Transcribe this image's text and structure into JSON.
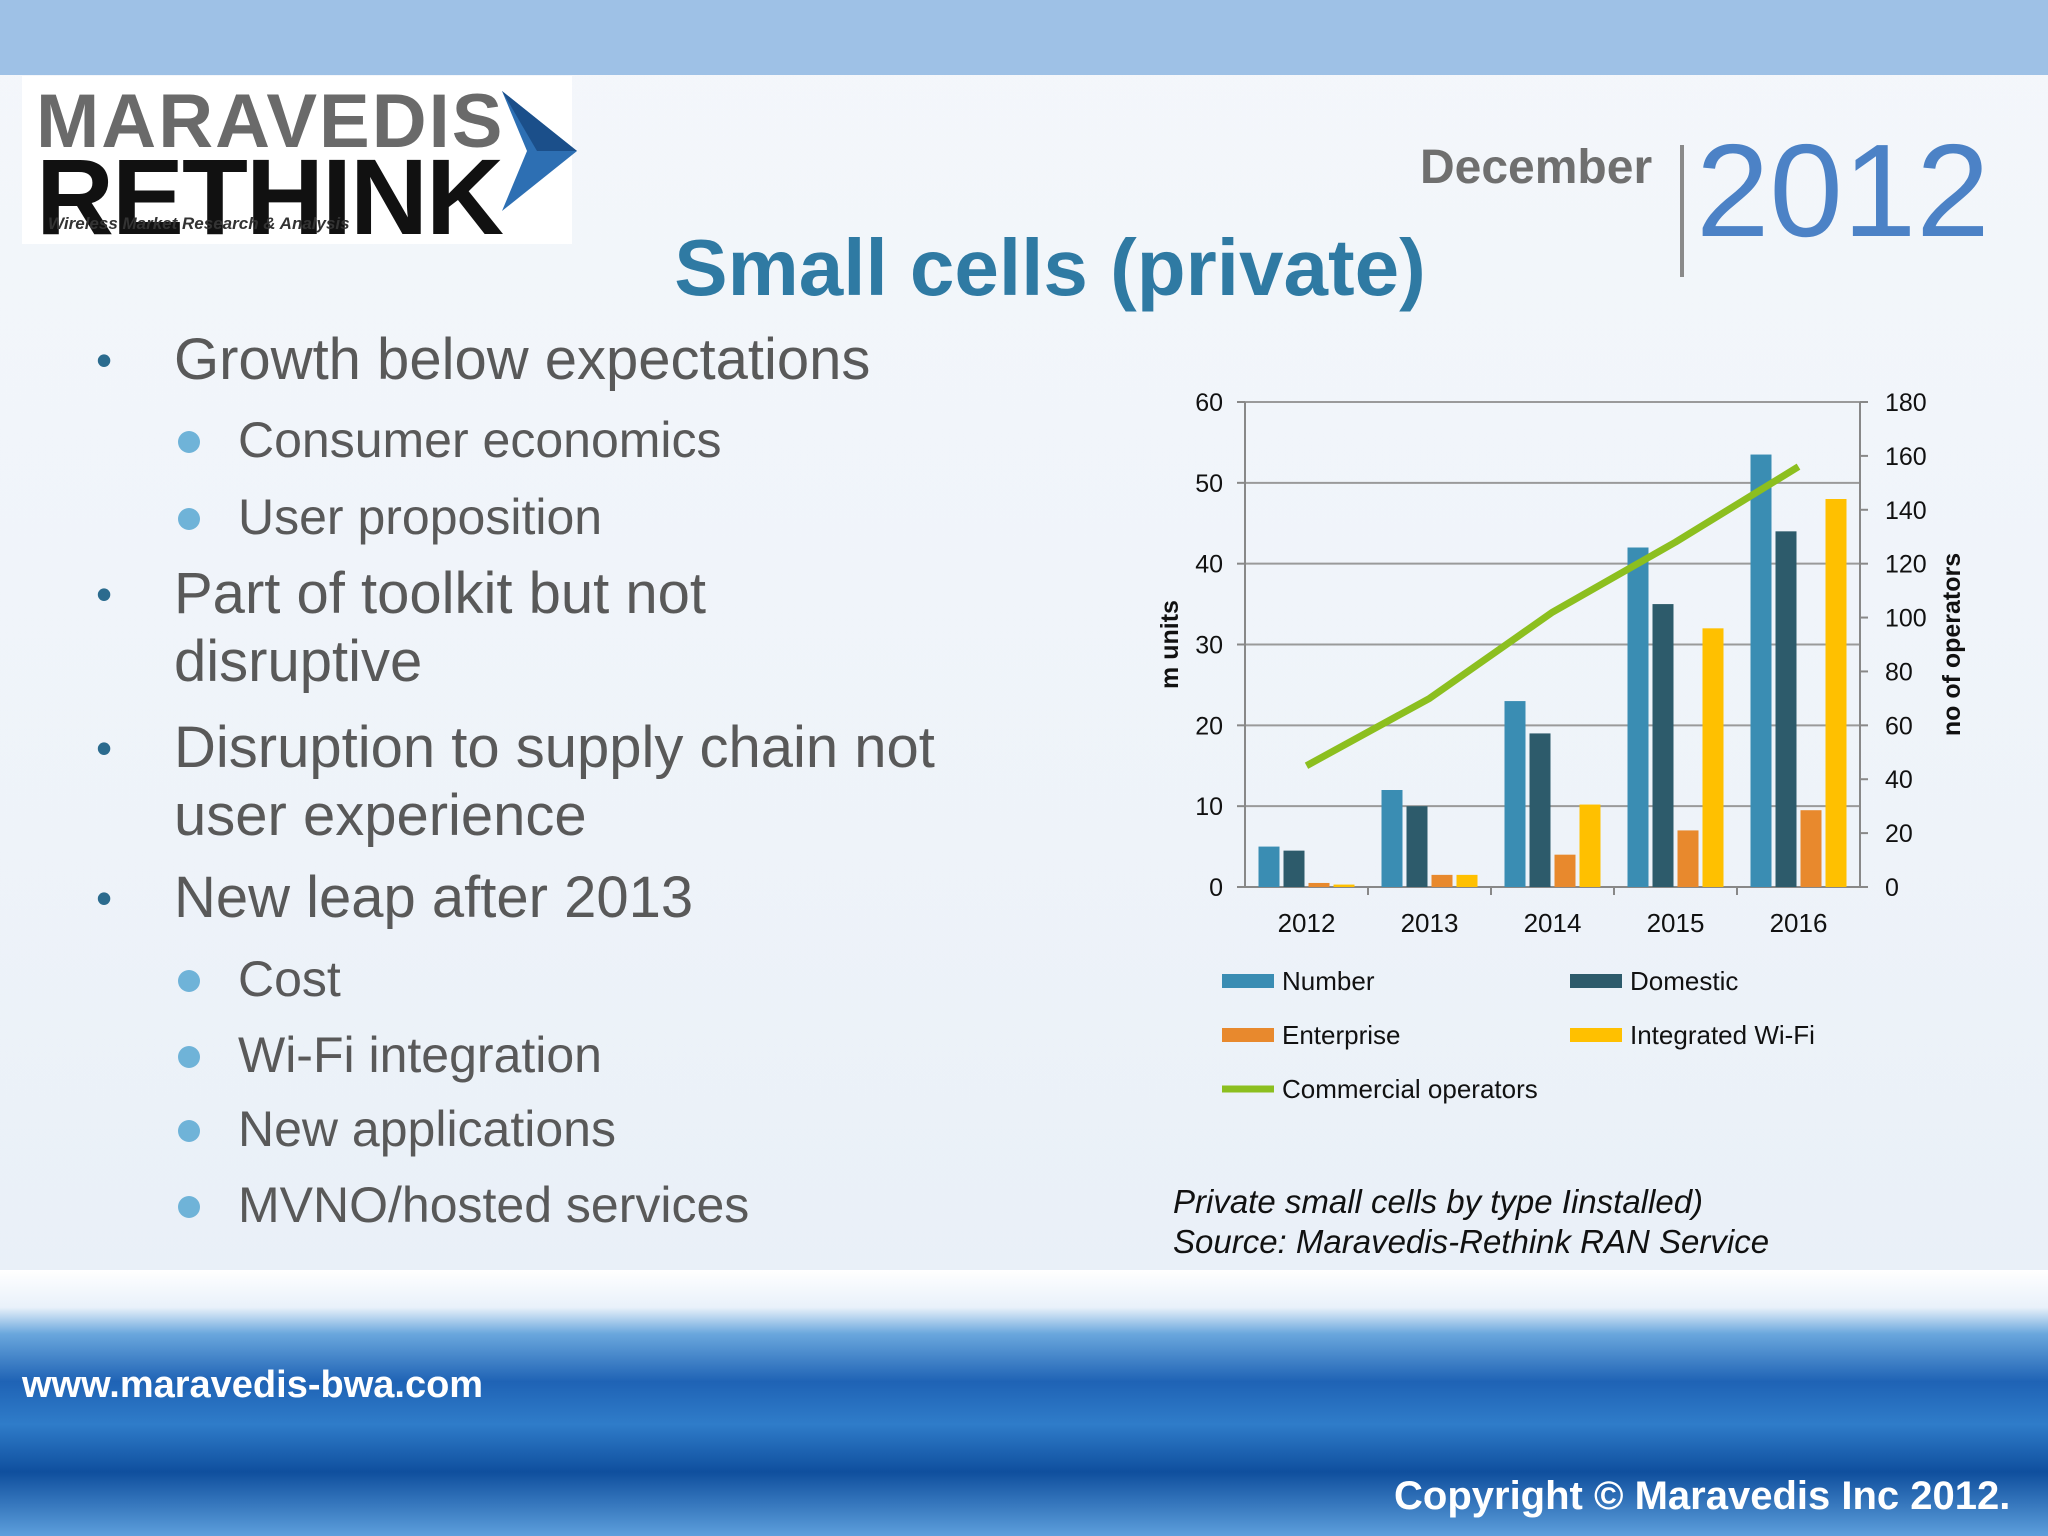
{
  "logo": {
    "line1": "MARAVEDIS",
    "line2": "RETHINK",
    "tagline": "Wireless Market Research & Analysis"
  },
  "date": {
    "month": "December",
    "year": "2012"
  },
  "title": "Small cells (private)",
  "bullets": [
    {
      "level": 1,
      "text": "Growth below expectations"
    },
    {
      "level": 2,
      "text": "Consumer economics"
    },
    {
      "level": 2,
      "text": "User proposition"
    },
    {
      "level": 1,
      "text": "Part of toolkit but not disruptive"
    },
    {
      "level": 1,
      "text": "Disruption to supply chain not user experience"
    },
    {
      "level": 1,
      "text": "New leap after 2013"
    },
    {
      "level": 2,
      "text": "Cost"
    },
    {
      "level": 2,
      "text": "Wi-Fi integration"
    },
    {
      "level": 2,
      "text": "New applications"
    },
    {
      "level": 2,
      "text": "MVNO/hosted services"
    }
  ],
  "chart_data": {
    "type": "bar",
    "categories": [
      "2012",
      "2013",
      "2014",
      "2015",
      "2016"
    ],
    "series": [
      {
        "name": "Number",
        "type": "bar",
        "axis": "left",
        "color": "#3a8db3",
        "values": [
          5,
          12,
          23,
          42,
          53.5
        ]
      },
      {
        "name": "Domestic",
        "type": "bar",
        "axis": "left",
        "color": "#2d5b6b",
        "values": [
          4.5,
          10,
          19,
          35,
          44
        ]
      },
      {
        "name": "Enterprise",
        "type": "bar",
        "axis": "left",
        "color": "#e8892d",
        "values": [
          0.5,
          1.5,
          4,
          7,
          9.5
        ]
      },
      {
        "name": "Integrated Wi-Fi",
        "type": "bar",
        "axis": "left",
        "color": "#ffc000",
        "values": [
          0.3,
          1.5,
          10.2,
          32,
          48
        ]
      },
      {
        "name": "Commercial operators",
        "type": "line",
        "axis": "right",
        "color": "#8cbf1f",
        "values": [
          45,
          70,
          102,
          128,
          156
        ]
      }
    ],
    "ylabel": "m units",
    "ylabel_right": "no of operators",
    "ylim": [
      0,
      60
    ],
    "ylim_right": [
      0,
      180
    ],
    "yticks": [
      "0",
      "10",
      "20",
      "30",
      "40",
      "50",
      "60"
    ],
    "yticks_right": [
      "0",
      "20",
      "40",
      "60",
      "80",
      "100",
      "120",
      "140",
      "160",
      "180"
    ],
    "grid": true,
    "legend_position": "bottom"
  },
  "caption": {
    "line1": "Private small cells by type  Iinstalled)",
    "line2": "Source: Maravedis-Rethink RAN Service"
  },
  "footer": {
    "url": "www.maravedis-bwa.com",
    "copyright": "Copyright © Maravedis Inc 2012."
  }
}
